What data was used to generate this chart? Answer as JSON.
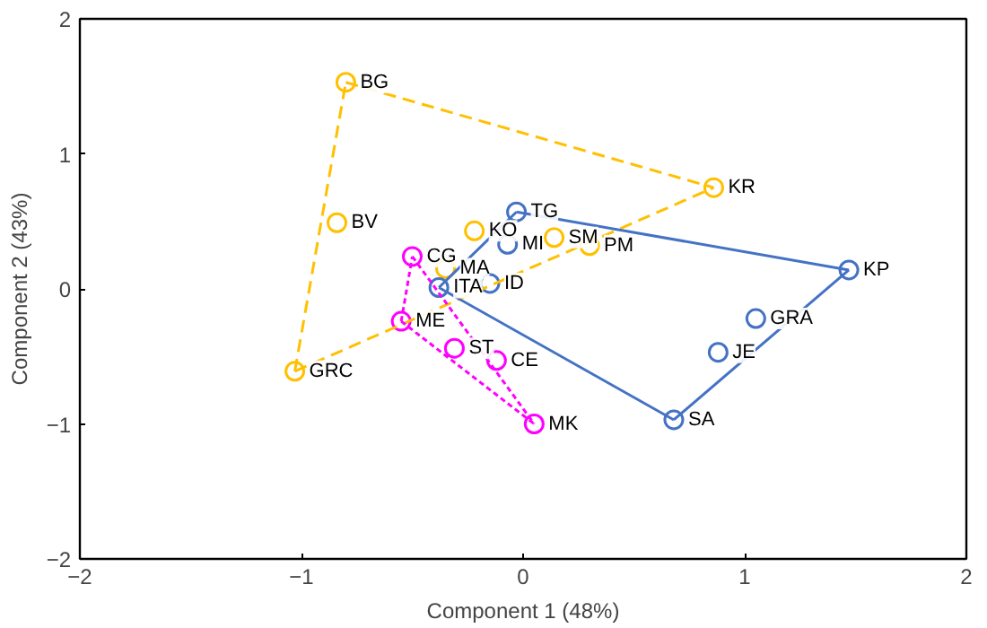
{
  "chart_data": {
    "type": "scatter",
    "xlabel": "Component 1 (48%)",
    "ylabel": "Component 2 (43%)",
    "xlim": [
      -2,
      2
    ],
    "ylim": [
      -2,
      2
    ],
    "xticks": [
      {
        "value": -2,
        "label": "−2"
      },
      {
        "value": -1,
        "label": "−1"
      },
      0,
      1,
      2
    ],
    "yticks": [
      {
        "value": -2,
        "label": "−2"
      },
      {
        "value": -1,
        "label": "−1"
      },
      0,
      1,
      2
    ],
    "grid": false,
    "marker": "circle",
    "series": [
      {
        "color": "#ffc000",
        "x": [
          -0.8,
          0.86,
          -0.84,
          -1.03,
          -0.22,
          0.14,
          0.3,
          -0.35
        ],
        "values": [
          1.53,
          0.75,
          0.49,
          -0.61,
          0.43,
          0.38,
          0.32,
          0.15
        ],
        "value_labels": [
          "BG",
          "KR",
          "BV",
          "GRC",
          "KO",
          "SM",
          "PM",
          "MA"
        ]
      },
      {
        "color": "#4472c4",
        "x": [
          -0.03,
          -0.07,
          -0.38,
          -0.15,
          1.47,
          1.05,
          0.88,
          0.68
        ],
        "values": [
          0.57,
          0.33,
          0.01,
          0.04,
          0.14,
          -0.22,
          -0.47,
          -0.97
        ],
        "value_labels": [
          "TG",
          "MI",
          "ITA",
          "ID",
          "KP",
          "GRA",
          "JE",
          "SA"
        ]
      },
      {
        "color": "#ff00ff",
        "x": [
          -0.5,
          -0.55,
          -0.31,
          -0.12,
          0.05
        ],
        "values": [
          0.24,
          -0.24,
          -0.44,
          -0.53,
          -1.0
        ],
        "value_labels": [
          "CG",
          "ME",
          "ST",
          "CE",
          "MK"
        ]
      },
      {
        "type": "line",
        "line_style": "dashed",
        "marker": "none",
        "color": "#ffc000",
        "x": [
          -0.8,
          0.86
        ],
        "values": [
          1.53,
          0.75
        ]
      },
      {
        "type": "line",
        "line_style": "dashed",
        "marker": "none",
        "color": "#ffc000",
        "x": [
          -1.03,
          0.86
        ],
        "values": [
          -0.61,
          0.75
        ]
      },
      {
        "type": "line",
        "line_style": "dashed",
        "marker": "none",
        "color": "#ffc000",
        "x": [
          -1.03,
          -0.8
        ],
        "values": [
          -0.61,
          1.53
        ]
      },
      {
        "type": "line",
        "line_style": "solid",
        "marker": "none",
        "color": "#4472c4",
        "x": [
          -0.38,
          -0.03
        ],
        "values": [
          0.01,
          0.57
        ]
      },
      {
        "type": "line",
        "line_style": "solid",
        "marker": "none",
        "color": "#4472c4",
        "x": [
          -0.03,
          1.47
        ],
        "values": [
          0.57,
          0.14
        ]
      },
      {
        "type": "line",
        "line_style": "solid",
        "marker": "none",
        "color": "#4472c4",
        "x": [
          0.68,
          1.47
        ],
        "values": [
          -0.97,
          0.14
        ]
      },
      {
        "type": "line",
        "line_style": "solid",
        "marker": "none",
        "color": "#4472c4",
        "x": [
          -0.38,
          0.68
        ],
        "values": [
          0.01,
          -0.97
        ]
      },
      {
        "type": "line",
        "line_style": "dotted",
        "marker": "none",
        "color": "#ff00ff",
        "x": [
          -0.5,
          0.05
        ],
        "values": [
          0.24,
          -1.0
        ]
      },
      {
        "type": "line",
        "line_style": "dotted",
        "marker": "none",
        "color": "#ff00ff",
        "x": [
          -0.55,
          0.05
        ],
        "values": [
          -0.24,
          -1.0
        ]
      },
      {
        "type": "line",
        "line_style": "dotted",
        "marker": "none",
        "color": "#ff00ff",
        "x": [
          -0.55,
          -0.5
        ],
        "values": [
          -0.24,
          0.24
        ]
      }
    ]
  }
}
